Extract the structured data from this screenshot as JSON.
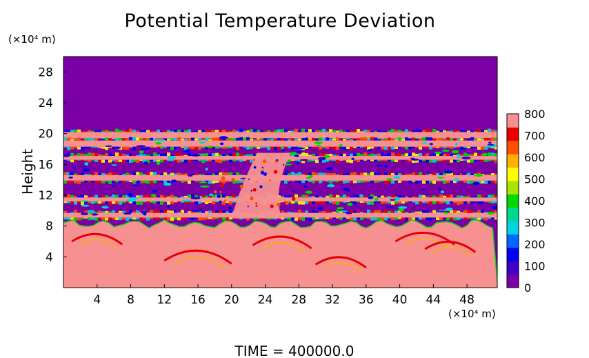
{
  "chart_data": {
    "type": "heatmap",
    "title": "Potential Temperature Deviation",
    "ylabel": "Height",
    "x_unit_label": "(×10⁴ m)",
    "y_unit_label": "(×10⁴ m)",
    "xlim": [
      0,
      51.6
    ],
    "ylim": [
      0,
      30
    ],
    "x_ticks": [
      4,
      8,
      12,
      16,
      20,
      24,
      28,
      32,
      36,
      40,
      44,
      48
    ],
    "y_ticks": [
      4,
      8,
      12,
      16,
      20,
      24,
      28
    ],
    "colorbar": {
      "min": 0,
      "max": 800,
      "ticks": [
        0,
        100,
        200,
        300,
        400,
        500,
        600,
        700,
        800
      ],
      "colors": [
        "#7a00a6",
        "#3d00c8",
        "#0000f0",
        "#0068ff",
        "#00d4e0",
        "#00d890",
        "#00d800",
        "#a8e600",
        "#ffff00",
        "#ffb000",
        "#ff5000",
        "#e80000",
        "#f79090"
      ]
    },
    "fields": {
      "upper_layer": {
        "y_range": [
          20,
          30
        ],
        "value": 0
      },
      "lower_layer": {
        "y_range": [
          0,
          8
        ],
        "value": 800
      },
      "bands": [
        {
          "y_range": [
            19.4,
            20.2
          ],
          "value": 800
        },
        {
          "y_range": [
            18.3,
            19.1
          ],
          "value": 800
        },
        {
          "y_range": [
            16.6,
            17.1
          ],
          "value": 800
        },
        {
          "y_range": [
            13.9,
            14.6
          ],
          "value": 800
        },
        {
          "y_range": [
            11.2,
            11.7
          ],
          "value": 800
        },
        {
          "y_range": [
            9.1,
            9.7
          ],
          "value": 800
        }
      ]
    }
  },
  "caption": "TIME  =  400000.0"
}
